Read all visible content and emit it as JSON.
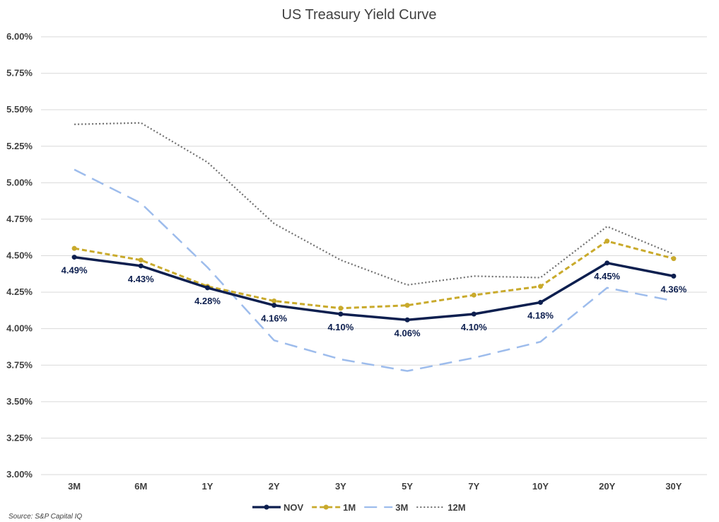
{
  "chart_data": {
    "type": "line",
    "title": "US Treasury Yield Curve",
    "categories": [
      "3M",
      "6M",
      "1Y",
      "2Y",
      "3Y",
      "5Y",
      "7Y",
      "10Y",
      "20Y",
      "30Y"
    ],
    "ylim": [
      3.0,
      6.0
    ],
    "ytick_step": 0.25,
    "y_tick_format": "percent_2dp",
    "grid": true,
    "legend_position": "bottom",
    "series": [
      {
        "name": "NOV",
        "values": [
          4.49,
          4.43,
          4.28,
          4.16,
          4.1,
          4.06,
          4.1,
          4.18,
          4.45,
          4.36
        ],
        "color": "#0d1f4f",
        "style": "solid",
        "markers": true,
        "data_labels": true
      },
      {
        "name": "1M",
        "values": [
          4.55,
          4.47,
          4.29,
          4.19,
          4.14,
          4.16,
          4.23,
          4.29,
          4.6,
          4.48
        ],
        "color": "#c9aa2c",
        "style": "dashed",
        "markers": true,
        "data_labels": false
      },
      {
        "name": "3M",
        "values": [
          5.09,
          4.86,
          4.42,
          3.92,
          3.79,
          3.71,
          3.8,
          3.91,
          4.28,
          4.19
        ],
        "color": "#9dbcec",
        "style": "longdash",
        "markers": false,
        "data_labels": false
      },
      {
        "name": "12M",
        "values": [
          5.4,
          5.41,
          5.14,
          4.72,
          4.47,
          4.3,
          4.36,
          4.35,
          4.7,
          4.51
        ],
        "color": "#707070",
        "style": "dotted",
        "markers": false,
        "data_labels": false
      }
    ],
    "source": "Source: S&P Capital IQ"
  }
}
